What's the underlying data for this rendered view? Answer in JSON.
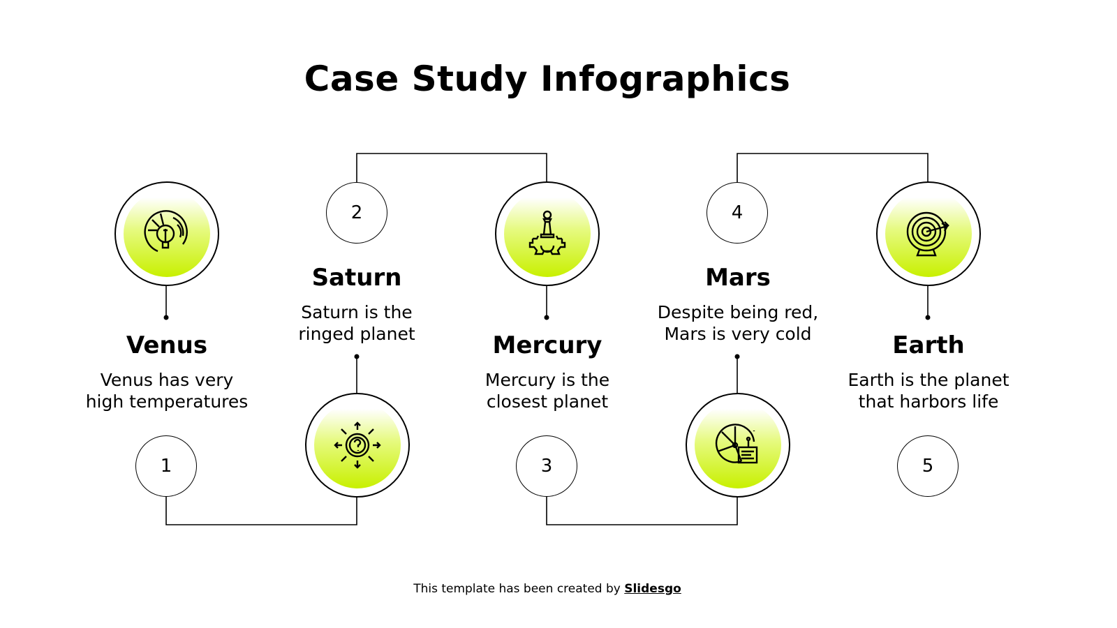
{
  "title": "Case Study Infographics",
  "accent_color": "#c8f000",
  "steps": [
    {
      "number": "1",
      "name": "Venus",
      "description_line1": "Venus has very",
      "description_line2": "high temperatures",
      "icon": "lightbulb-icon"
    },
    {
      "number": "2",
      "name": "Saturn",
      "description_line1": "Saturn is the",
      "description_line2": "ringed planet",
      "icon": "question-arrows-icon"
    },
    {
      "number": "3",
      "name": "Mercury",
      "description_line1": "Mercury is the",
      "description_line2": "closest planet",
      "icon": "chess-pawn-gear-icon"
    },
    {
      "number": "4",
      "name": "Mars",
      "description_line1": "Despite being red,",
      "description_line2": "Mars is very cold",
      "icon": "pie-chart-report-icon"
    },
    {
      "number": "5",
      "name": "Earth",
      "description_line1": "Earth is the planet",
      "description_line2": "that harbors life",
      "icon": "target-arrow-icon"
    }
  ],
  "footer": {
    "text": "This template has been created by ",
    "link": "Slidesgo"
  }
}
